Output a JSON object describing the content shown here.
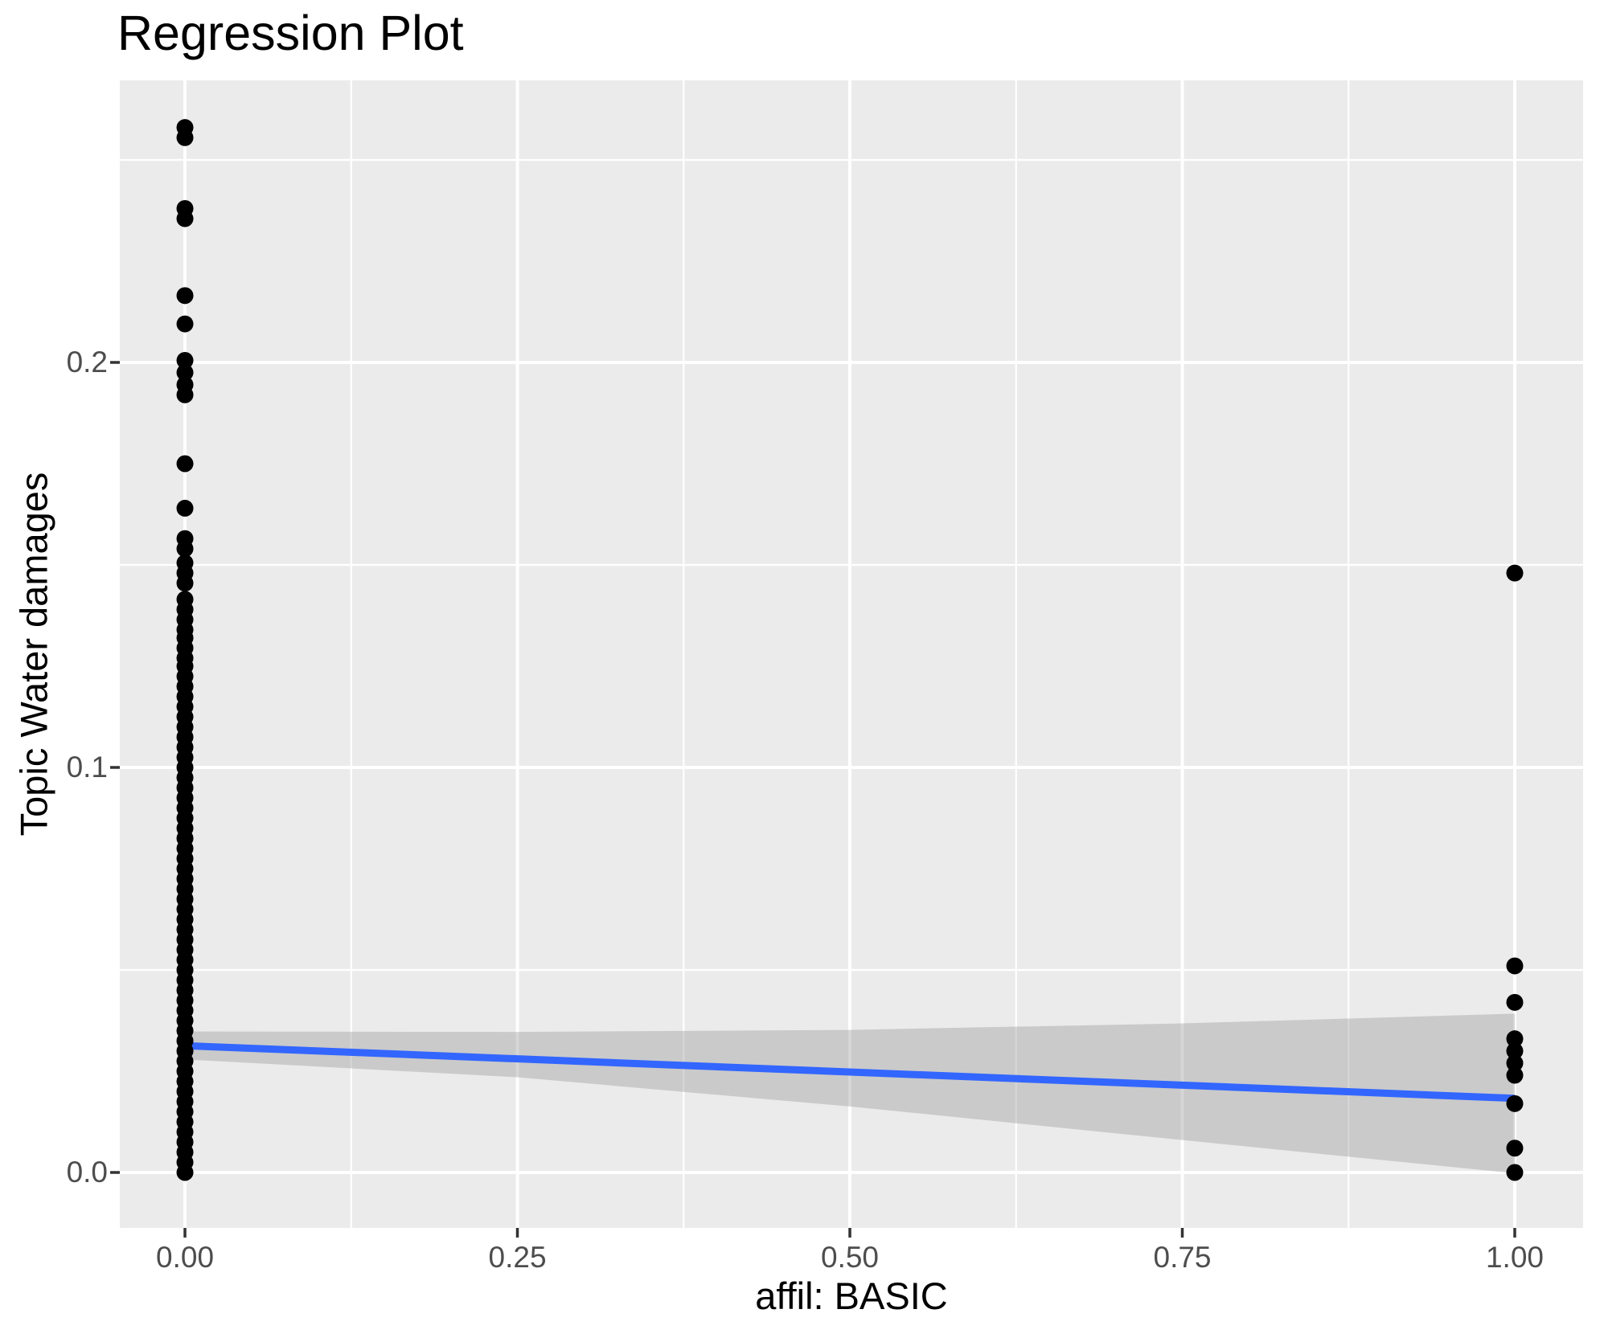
{
  "title": "Regression Plot",
  "chart_data": {
    "type": "scatter",
    "title": "Regression Plot",
    "xlabel": "affil: BASIC",
    "ylabel": "Topic Water damages",
    "legend": "none",
    "grid": "white major+minor gridlines on gray panel",
    "xlim": [
      -0.049,
      1.0514
    ],
    "ylim": [
      -0.01369,
      0.26964
    ],
    "x_ticks": {
      "values": [
        0,
        0.25,
        0.5,
        0.75,
        1
      ],
      "labels": [
        "0.00",
        "0.25",
        "0.50",
        "0.75",
        "1.00"
      ]
    },
    "y_ticks": {
      "values": [
        0,
        0.1,
        0.2
      ],
      "labels": [
        "0.0",
        "0.1",
        "0.2"
      ]
    },
    "x_minor": [
      0.125,
      0.375,
      0.625,
      0.875
    ],
    "y_minor": [
      0.05,
      0.15,
      0.25
    ],
    "series": [
      {
        "name": "observations at affil=0",
        "x": 0,
        "y": [
          0.258,
          0.2555,
          0.238,
          0.2355,
          0.2165,
          0.2095,
          0.2005,
          0.1975,
          0.1945,
          0.192,
          0.175,
          0.164,
          0.1565,
          0.154,
          0.1505,
          0.148,
          0.1455,
          0.1415,
          0.139,
          0.1365,
          0.134,
          0.132,
          0.1295,
          0.127,
          0.125,
          0.1225,
          0.12,
          0.1175,
          0.115,
          0.1125,
          0.11,
          0.1075,
          0.105,
          0.1025,
          0.1,
          0.0975,
          0.095,
          0.0925,
          0.09,
          0.0875,
          0.085,
          0.0825,
          0.08,
          0.0775,
          0.075,
          0.0725,
          0.07,
          0.0675,
          0.065,
          0.0625,
          0.06,
          0.0575,
          0.055,
          0.0525,
          0.05,
          0.0475,
          0.045,
          0.0425,
          0.04,
          0.0375,
          0.035,
          0.0325,
          0.03,
          0.0275,
          0.025,
          0.0225,
          0.02,
          0.0175,
          0.015,
          0.0125,
          0.01,
          0.0075,
          0.005,
          0.0025,
          0.0
        ]
      },
      {
        "name": "observations at affil=1",
        "x": 1,
        "y": [
          0.148,
          0.051,
          0.042,
          0.033,
          0.03,
          0.027,
          0.024,
          0.017,
          0.006,
          0.0
        ]
      }
    ],
    "regression_line": {
      "x": [
        0,
        1
      ],
      "y": [
        0.0313,
        0.0183
      ]
    },
    "confidence_band": {
      "x": [
        0,
        0.25,
        0.5,
        0.75,
        1
      ],
      "upper": [
        0.0348,
        0.0347,
        0.0352,
        0.0368,
        0.0392
      ],
      "lower": [
        0.0279,
        0.0235,
        0.0163,
        0.008,
        -0.0002
      ]
    },
    "colors": {
      "panel_background": "#EBEBEB",
      "gridline": "#FFFFFF",
      "point": "#000000",
      "regression_line": "#3366FF",
      "confidence_band": "rgba(153,153,153,0.4)",
      "tick_mark": "#333333",
      "tick_label": "#4D4D4D",
      "text": "#000000"
    }
  }
}
